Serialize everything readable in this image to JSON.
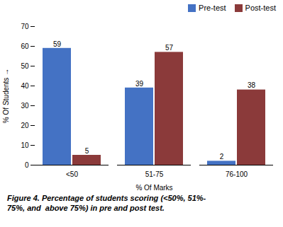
{
  "chart_data": {
    "type": "bar",
    "categories": [
      "<50",
      "51-75",
      "76-100"
    ],
    "series": [
      {
        "name": "Pre-test",
        "color": "#4472C4",
        "values": [
          59,
          39,
          2
        ]
      },
      {
        "name": "Post-test",
        "color": "#8B3A3A",
        "values": [
          5,
          57,
          38
        ]
      }
    ],
    "xlabel": "% Of Marks",
    "ylabel": "% Of Students",
    "ylim": [
      0,
      70
    ],
    "yticks": [
      0,
      10,
      20,
      30,
      40,
      50,
      60,
      70
    ],
    "grid": false,
    "legend": "upper right",
    "data_labels": true,
    "caption": [
      "Figure 4. Percentage of students scoring (<50%, 51%-",
      "75%, and  above 75%) in pre and post test."
    ]
  }
}
